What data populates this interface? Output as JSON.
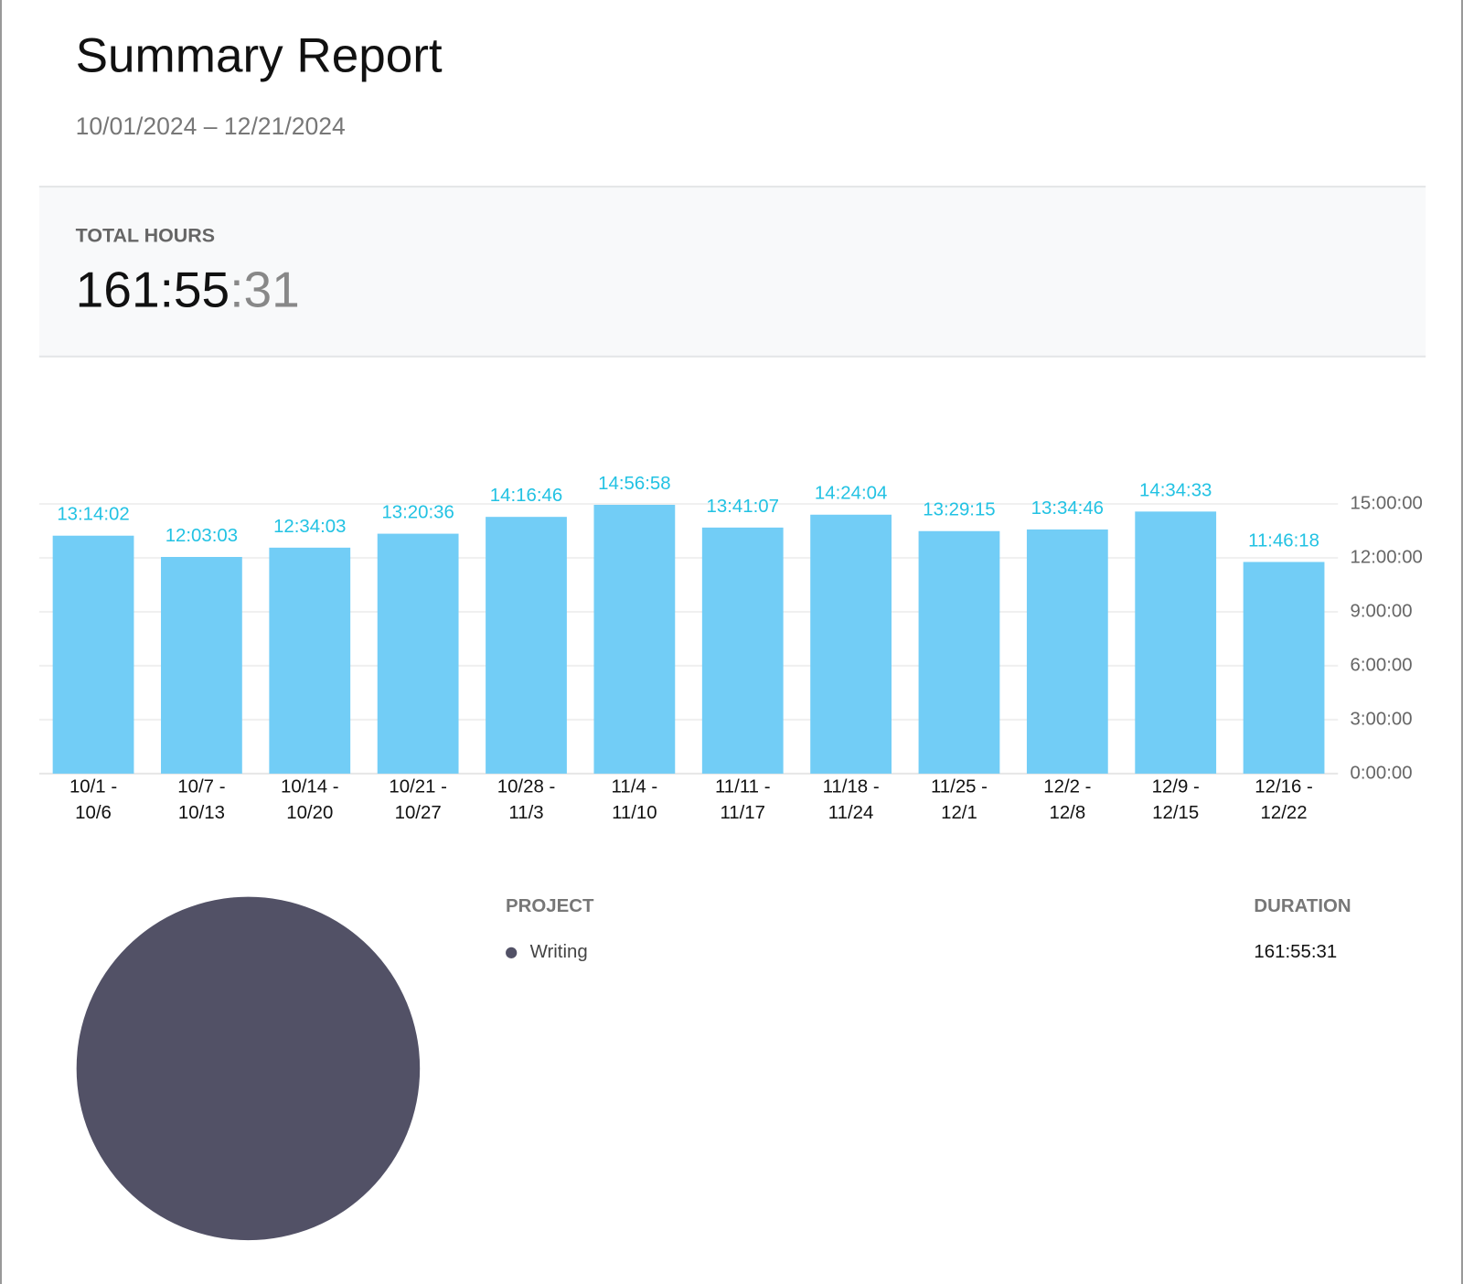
{
  "header": {
    "title": "Summary Report",
    "date_range": "10/01/2024 – 12/21/2024"
  },
  "total": {
    "label": "TOTAL HOURS",
    "value_main": "161:55",
    "value_seconds": ":31"
  },
  "chart_data": [
    {
      "type": "bar",
      "categories": [
        "10/1 - 10/6",
        "10/7 - 10/13",
        "10/14 - 10/20",
        "10/21 - 10/27",
        "10/28 - 11/3",
        "11/4 - 11/10",
        "11/11 - 11/17",
        "11/18 - 11/24",
        "11/25 - 12/1",
        "12/2 - 12/8",
        "12/9 - 12/15",
        "12/16 - 12/22"
      ],
      "values": [
        13.233889,
        12.050833,
        12.5675,
        13.343333,
        14.279444,
        14.949444,
        13.685278,
        14.401111,
        13.4875,
        13.579444,
        14.575833,
        11.771667
      ],
      "value_labels": [
        "13:14:02",
        "12:03:03",
        "12:34:03",
        "13:20:36",
        "14:16:46",
        "14:56:58",
        "13:41:07",
        "14:24:04",
        "13:29:15",
        "13:34:46",
        "14:34:33",
        "11:46:18"
      ],
      "color": "#72cdf6",
      "label_color": "#22c2e3",
      "ylim": [
        0,
        15
      ],
      "yticks": [
        {
          "value": 0,
          "label": "0:00:00"
        },
        {
          "value": 3,
          "label": "3:00:00"
        },
        {
          "value": 6,
          "label": "6:00:00"
        },
        {
          "value": 9,
          "label": "9:00:00"
        },
        {
          "value": 12,
          "label": "12:00:00"
        },
        {
          "value": 15,
          "label": "15:00:00"
        }
      ],
      "grid": true
    },
    {
      "type": "pie",
      "categories": [
        "Writing"
      ],
      "values": [
        161.925278
      ],
      "value_labels": [
        "161:55:31"
      ],
      "colors": [
        "#525166"
      ]
    }
  ],
  "table": {
    "headers": [
      "PROJECT",
      "DURATION"
    ]
  }
}
